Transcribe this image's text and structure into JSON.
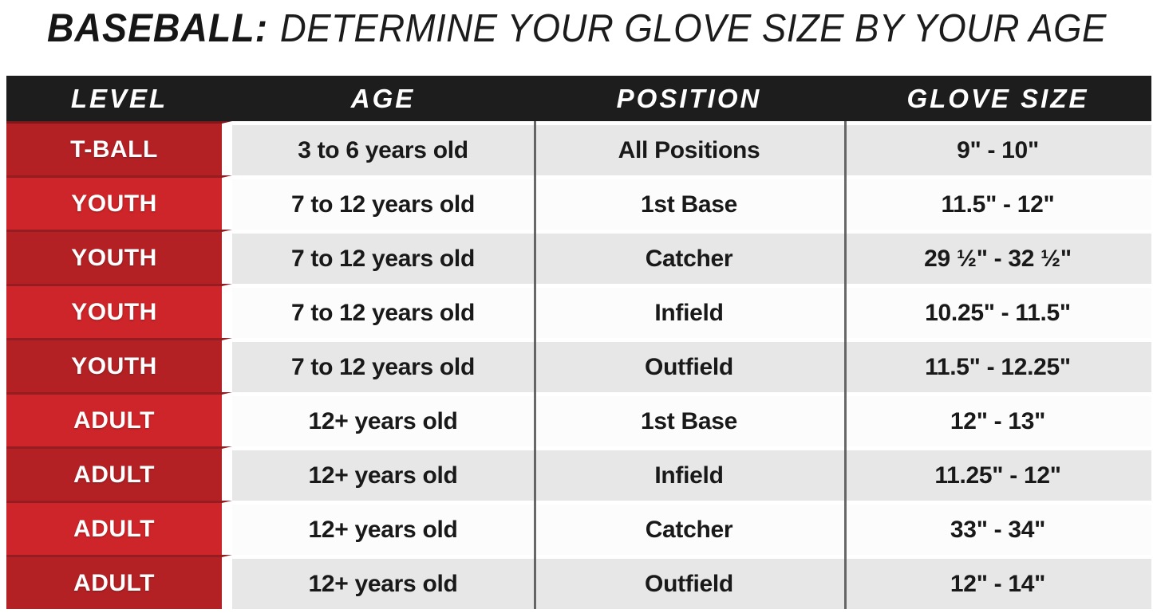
{
  "title": {
    "lead": "BASEBALL:",
    "rest": "DETERMINE YOUR GLOVE SIZE BY YOUR AGE"
  },
  "table": {
    "columns": [
      "LEVEL",
      "AGE",
      "POSITION",
      "GLOVE SIZE"
    ],
    "rows": [
      {
        "level": "T-BALL",
        "age": "3 to 6 years old",
        "position": "All Positions",
        "glove_size": "9\" - 10\""
      },
      {
        "level": "YOUTH",
        "age": "7 to 12 years old",
        "position": "1st Base",
        "glove_size": "11.5\" - 12\""
      },
      {
        "level": "YOUTH",
        "age": "7 to 12 years old",
        "position": "Catcher",
        "glove_size": "29 ½\" - 32 ½\""
      },
      {
        "level": "YOUTH",
        "age": "7 to 12 years old",
        "position": "Infield",
        "glove_size": "10.25\" - 11.5\""
      },
      {
        "level": "YOUTH",
        "age": "7 to 12 years old",
        "position": "Outfield",
        "glove_size": "11.5\" - 12.25\""
      },
      {
        "level": "ADULT",
        "age": "12+ years old",
        "position": "1st Base",
        "glove_size": "12\" - 13\""
      },
      {
        "level": "ADULT",
        "age": "12+ years old",
        "position": "Infield",
        "glove_size": "11.25\" - 12\""
      },
      {
        "level": "ADULT",
        "age": "12+ years old",
        "position": "Catcher",
        "glove_size": "33\" - 34\""
      },
      {
        "level": "ADULT",
        "age": "12+ years old",
        "position": "Outfield",
        "glove_size": "12\" - 14\""
      }
    ]
  },
  "colors": {
    "header_bg": "#1d1d1d",
    "header_text": "#ffffff",
    "level_red_bright": "#cd2529",
    "level_red_dark": "#b32125",
    "row_gray": "#e7e7e7",
    "row_white": "#fcfcfc",
    "divider_line": "#4d4d4d",
    "body_text": "#191919"
  },
  "chart_data": {
    "type": "table",
    "title": "BASEBALL: DETERMINE YOUR GLOVE SIZE BY YOUR AGE",
    "columns": [
      "LEVEL",
      "AGE",
      "POSITION",
      "GLOVE SIZE"
    ],
    "rows": [
      [
        "T-BALL",
        "3 to 6 years old",
        "All Positions",
        "9\" - 10\""
      ],
      [
        "YOUTH",
        "7 to 12 years old",
        "1st Base",
        "11.5\" - 12\""
      ],
      [
        "YOUTH",
        "7 to 12 years old",
        "Catcher",
        "29 ½\" - 32 ½\""
      ],
      [
        "YOUTH",
        "7 to 12 years old",
        "Infield",
        "10.25\" - 11.5\""
      ],
      [
        "YOUTH",
        "7 to 12 years old",
        "Outfield",
        "11.5\" - 12.25\""
      ],
      [
        "ADULT",
        "12+ years old",
        "1st Base",
        "12\" - 13\""
      ],
      [
        "ADULT",
        "12+ years old",
        "Infield",
        "11.25\" - 12\""
      ],
      [
        "ADULT",
        "12+ years old",
        "Catcher",
        "33\" - 34\""
      ],
      [
        "ADULT",
        "12+ years old",
        "Outfield",
        "12\" - 14\""
      ]
    ],
    "layout": {
      "header_style": "black band, white italic text",
      "level_column_style": "red cells, white text, alternating bright/dark",
      "row_striping": "gray / white alternating, starting gray"
    }
  }
}
